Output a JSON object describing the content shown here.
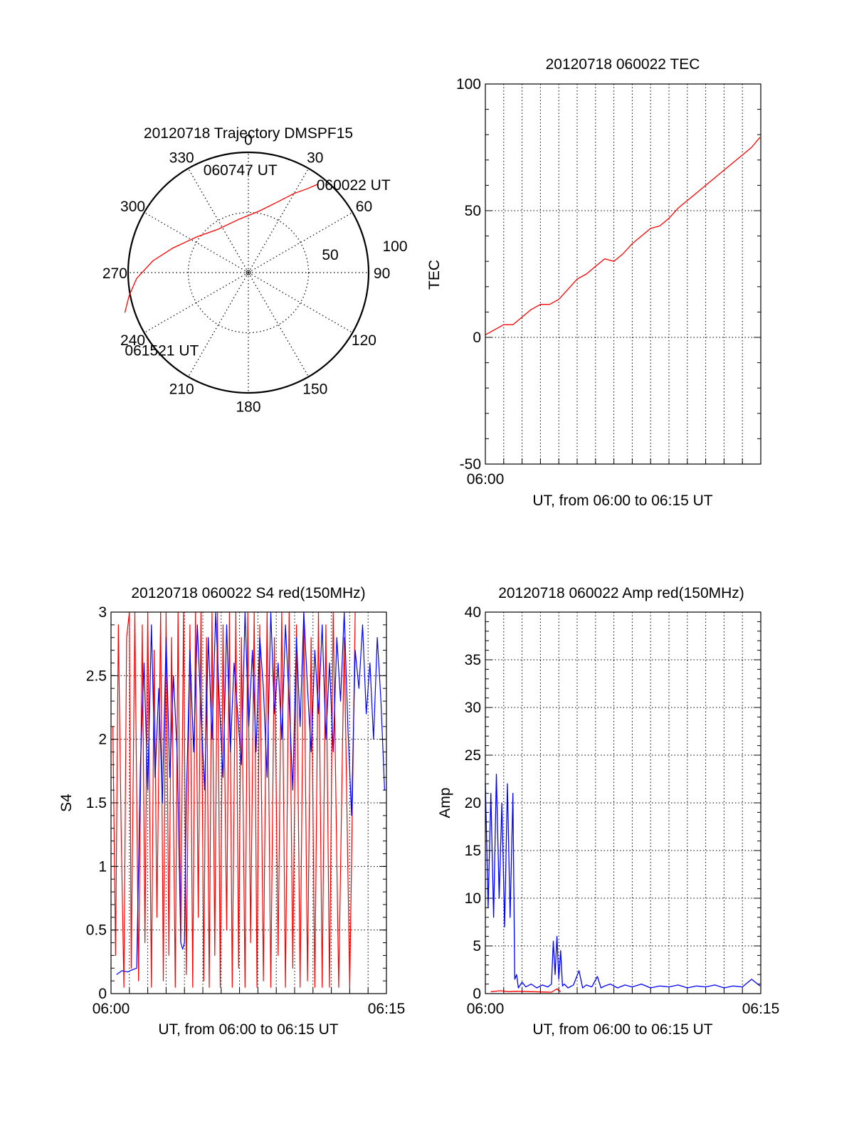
{
  "colors": {
    "red": "#ff0000",
    "blue": "#0000ff",
    "axis": "#000000",
    "grid": "#000000"
  },
  "chart_data": [
    {
      "id": "trajectory",
      "type": "polar",
      "title": "20120718 Trajectory DMSPF15",
      "azimuth_ticks": [
        0,
        30,
        60,
        90,
        120,
        150,
        180,
        210,
        240,
        270,
        300,
        330
      ],
      "radial_ring_labels": [
        "50",
        "100"
      ],
      "radial_rings": [
        50,
        100
      ],
      "track": {
        "color": "red",
        "points": [
          {
            "az": 38,
            "zen": 93
          },
          {
            "az": 35,
            "zen": 85
          },
          {
            "az": 30,
            "zen": 76
          },
          {
            "az": 22,
            "zen": 63
          },
          {
            "az": 10,
            "zen": 52
          },
          {
            "az": -10,
            "zen": 45
          },
          {
            "az": -35,
            "zen": 44
          },
          {
            "az": -55,
            "zen": 52
          },
          {
            "az": -72,
            "zen": 66
          },
          {
            "az": -83,
            "zen": 80
          },
          {
            "az": -93,
            "zen": 93
          },
          {
            "az": -101,
            "zen": 101
          },
          {
            "az": -108,
            "zen": 108
          }
        ]
      },
      "annotations": [
        {
          "label": "060022 UT",
          "az": 38,
          "zen": 93
        },
        {
          "label": "060747 UT",
          "az": -10,
          "zen": 45
        },
        {
          "label": "061521 UT",
          "az": -108,
          "zen": 108
        }
      ]
    },
    {
      "id": "tec",
      "type": "line",
      "title": "20120718 060022 TEC",
      "xlabel": "UT, from 06:00 to 06:15 UT",
      "ylabel": "TEC",
      "x_tick_labels": [
        "06:00"
      ],
      "xlim": [
        0,
        15
      ],
      "ylim": [
        -50,
        100
      ],
      "yticks": [
        -50,
        0,
        50,
        100
      ],
      "series": [
        {
          "color": "red",
          "x": [
            0.0,
            0.5,
            1.0,
            1.5,
            2.0,
            2.5,
            3.0,
            3.5,
            4.0,
            4.5,
            5.0,
            5.5,
            6.0,
            6.5,
            7.0,
            7.5,
            8.0,
            8.5,
            9.0,
            9.5,
            10.0,
            10.5,
            11.0,
            11.5,
            12.0,
            12.5,
            13.0,
            13.5,
            14.0,
            14.5,
            14.96
          ],
          "y": [
            1,
            3,
            5,
            5,
            8,
            11,
            13,
            13,
            15,
            19,
            23,
            25,
            28,
            31,
            30,
            33,
            37,
            40,
            43,
            44,
            47,
            51,
            54,
            57,
            60,
            63,
            66,
            69,
            72,
            75,
            79
          ]
        }
      ]
    },
    {
      "id": "s4",
      "type": "line",
      "title": "20120718 060022 S4 red(150MHz)",
      "xlabel": "UT, from 06:00 to 06:15 UT",
      "ylabel": "S4",
      "x_tick_labels": [
        "06:00",
        "06:15"
      ],
      "xlim": [
        0,
        15
      ],
      "ylim": [
        0,
        3
      ],
      "yticks": [
        0,
        0.5,
        1,
        1.5,
        2,
        2.5,
        3
      ],
      "ytick_labels": [
        "0",
        "0.5",
        "1",
        "1.5",
        "2",
        "2.5",
        "3"
      ],
      "series": [
        {
          "color": "red",
          "x": [
            0.1,
            0.25,
            0.4,
            0.55,
            0.7,
            0.85,
            1.0,
            1.1,
            1.3,
            1.5,
            1.7,
            1.85,
            2.0,
            2.2,
            2.35,
            2.5,
            2.7,
            2.85,
            3.0,
            3.15,
            3.3,
            3.5,
            3.65,
            3.8,
            3.95,
            4.1,
            4.3,
            4.45,
            4.6,
            4.75,
            4.9,
            5.05,
            5.2,
            5.35,
            5.5,
            5.65,
            5.8,
            5.95,
            6.1,
            6.3,
            6.45,
            6.6,
            6.8,
            6.95,
            7.1,
            7.3,
            7.45,
            7.6,
            7.8,
            7.95,
            8.1,
            8.3,
            8.5,
            8.7,
            8.9,
            9.1,
            9.3,
            9.5,
            9.7,
            9.9,
            10.1,
            10.3,
            10.5,
            10.7,
            10.9,
            11.1,
            11.3,
            11.5,
            11.7,
            11.9,
            12.1,
            12.4,
            12.7,
            13.0,
            13.3
          ],
          "y": [
            2.1,
            0.3,
            2.9,
            1.3,
            0.05,
            2.8,
            3.0,
            0.2,
            3.0,
            0.1,
            2.9,
            0.4,
            3.0,
            0.05,
            2.7,
            0.6,
            3.0,
            0.1,
            3.0,
            0.3,
            2.8,
            0.05,
            3.0,
            0.4,
            3.0,
            0.15,
            2.9,
            0.05,
            3.0,
            0.6,
            3.0,
            0.1,
            2.8,
            0.05,
            3.0,
            0.3,
            3.0,
            0.05,
            2.9,
            0.5,
            3.0,
            0.05,
            3.0,
            0.2,
            2.8,
            0.05,
            3.0,
            0.4,
            3.0,
            0.05,
            2.9,
            0.1,
            3.0,
            0.05,
            2.8,
            0.3,
            3.0,
            0.05,
            3.0,
            0.2,
            2.9,
            0.05,
            3.0,
            0.1,
            2.8,
            0.05,
            3.0,
            0.05,
            2.9,
            0.05,
            3.0,
            0.05,
            2.8,
            0.05,
            3.0
          ]
        },
        {
          "color": "blue",
          "x": [
            0.3,
            0.6,
            0.9,
            1.2,
            1.4,
            1.6,
            1.8,
            2.0,
            2.2,
            2.4,
            2.6,
            2.8,
            3.0,
            3.2,
            3.4,
            3.6,
            3.8,
            3.9,
            4.0,
            4.1,
            4.3,
            4.5,
            4.7,
            4.9,
            5.1,
            5.3,
            5.5,
            5.7,
            5.9,
            6.1,
            6.3,
            6.5,
            6.7,
            6.9,
            7.1,
            7.3,
            7.5,
            7.7,
            7.9,
            8.1,
            8.3,
            8.5,
            8.7,
            8.9,
            9.1,
            9.3,
            9.5,
            9.7,
            9.9,
            10.1,
            10.3,
            10.5,
            10.7,
            10.9,
            11.1,
            11.3,
            11.5,
            11.7,
            11.9,
            12.1,
            12.3,
            12.5,
            12.7,
            12.9,
            13.1,
            13.3,
            13.5,
            13.7,
            13.9,
            14.1,
            14.3,
            14.5,
            14.7,
            14.9
          ],
          "y": [
            0.15,
            0.18,
            0.17,
            0.19,
            0.2,
            1.8,
            2.6,
            1.6,
            2.9,
            1.7,
            2.4,
            1.5,
            2.8,
            1.7,
            2.5,
            1.9,
            0.4,
            0.35,
            0.4,
            1.5,
            2.7,
            1.9,
            2.9,
            2.2,
            1.6,
            2.8,
            2.0,
            3.0,
            2.3,
            1.7,
            2.9,
            1.9,
            2.6,
            2.2,
            1.8,
            3.0,
            2.1,
            2.7,
            1.9,
            2.8,
            2.4,
            1.7,
            3.0,
            2.2,
            2.6,
            2.0,
            2.9,
            2.3,
            1.6,
            2.8,
            2.1,
            3.0,
            2.4,
            1.9,
            2.7,
            2.2,
            2.9,
            2.0,
            2.6,
            1.9,
            2.8,
            2.3,
            3.0,
            2.1,
            1.4,
            2.7,
            2.4,
            2.9,
            2.2,
            2.6,
            2.0,
            2.8,
            2.3,
            1.6
          ]
        }
      ]
    },
    {
      "id": "amp",
      "type": "line",
      "title": "20120718 060022 Amp red(150MHz)",
      "xlabel": "UT, from 06:00 to 06:15 UT",
      "ylabel": "Amp",
      "x_tick_labels": [
        "06:00",
        "06:15"
      ],
      "xlim": [
        0,
        15
      ],
      "ylim": [
        0,
        40
      ],
      "yticks": [
        0,
        5,
        10,
        15,
        20,
        25,
        30,
        35,
        40
      ],
      "series": [
        {
          "color": "blue",
          "x": [
            0.0,
            0.15,
            0.3,
            0.45,
            0.6,
            0.75,
            0.9,
            1.05,
            1.2,
            1.35,
            1.5,
            1.6,
            1.7,
            1.8,
            2.0,
            2.2,
            2.5,
            2.8,
            3.1,
            3.4,
            3.6,
            3.7,
            3.8,
            3.9,
            4.0,
            4.1,
            4.2,
            4.3,
            4.5,
            4.8,
            5.1,
            5.3,
            5.5,
            5.8,
            6.1,
            6.3,
            6.5,
            6.8,
            7.2,
            7.6,
            8.0,
            8.5,
            9.0,
            9.5,
            10.0,
            10.5,
            11.0,
            11.5,
            12.0,
            12.5,
            13.0,
            13.5,
            14.0,
            14.5,
            14.96
          ],
          "y": [
            22,
            9,
            21,
            8,
            23,
            10,
            20,
            7,
            22,
            8,
            21,
            1.5,
            2.0,
            0.6,
            1.2,
            0.7,
            1.0,
            0.6,
            0.9,
            0.7,
            1.0,
            5.5,
            2.0,
            6.0,
            1.5,
            4.5,
            0.8,
            1.0,
            0.6,
            0.9,
            2.4,
            0.6,
            0.9,
            0.7,
            1.8,
            0.6,
            0.8,
            1.0,
            0.6,
            0.9,
            0.7,
            1.0,
            0.6,
            0.8,
            0.7,
            0.9,
            0.6,
            0.8,
            0.7,
            0.9,
            0.6,
            0.8,
            0.7,
            1.5,
            0.8
          ]
        },
        {
          "color": "red",
          "x": [
            0.3,
            0.8,
            1.3,
            1.6,
            3.6,
            3.9,
            4.1
          ],
          "y": [
            0.2,
            0.3,
            0.2,
            0.25,
            0.15,
            0.5,
            0.2
          ]
        }
      ]
    }
  ]
}
